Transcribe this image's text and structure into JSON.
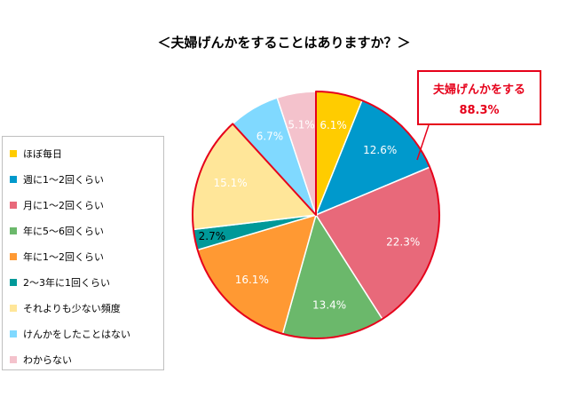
{
  "chart_data": {
    "type": "pie",
    "title": "＜夫婦げんかをすることはありますか？＞",
    "categories": [
      "ほぼ毎日",
      "週に1〜2回くらい",
      "月に1〜2回くらい",
      "年に5〜6回くらい",
      "年に1〜2回くらい",
      "2〜3年に1回くらい",
      "それよりも少ない頻度",
      "けんかをしたことはない",
      "わからない"
    ],
    "values": [
      6.1,
      12.6,
      22.3,
      13.4,
      16.1,
      2.7,
      15.1,
      6.7,
      5.1
    ],
    "value_labels": [
      "6.1%",
      "12.6%",
      "22.3%",
      "13.4%",
      "16.1%",
      "2.7%",
      "15.1%",
      "6.7%",
      "5.1%"
    ],
    "colors": [
      "#ffcc00",
      "#0099cc",
      "#e8697a",
      "#6bb86b",
      "#ff9933",
      "#009999",
      "#ffe699",
      "#80d9ff",
      "#f4c2cc"
    ],
    "highlight": {
      "label": "夫婦げんかをする",
      "value": "88.3%",
      "color": "#e6001a",
      "slices": [
        0,
        1,
        2,
        3,
        4,
        5,
        6
      ]
    },
    "legend_position": "left"
  }
}
